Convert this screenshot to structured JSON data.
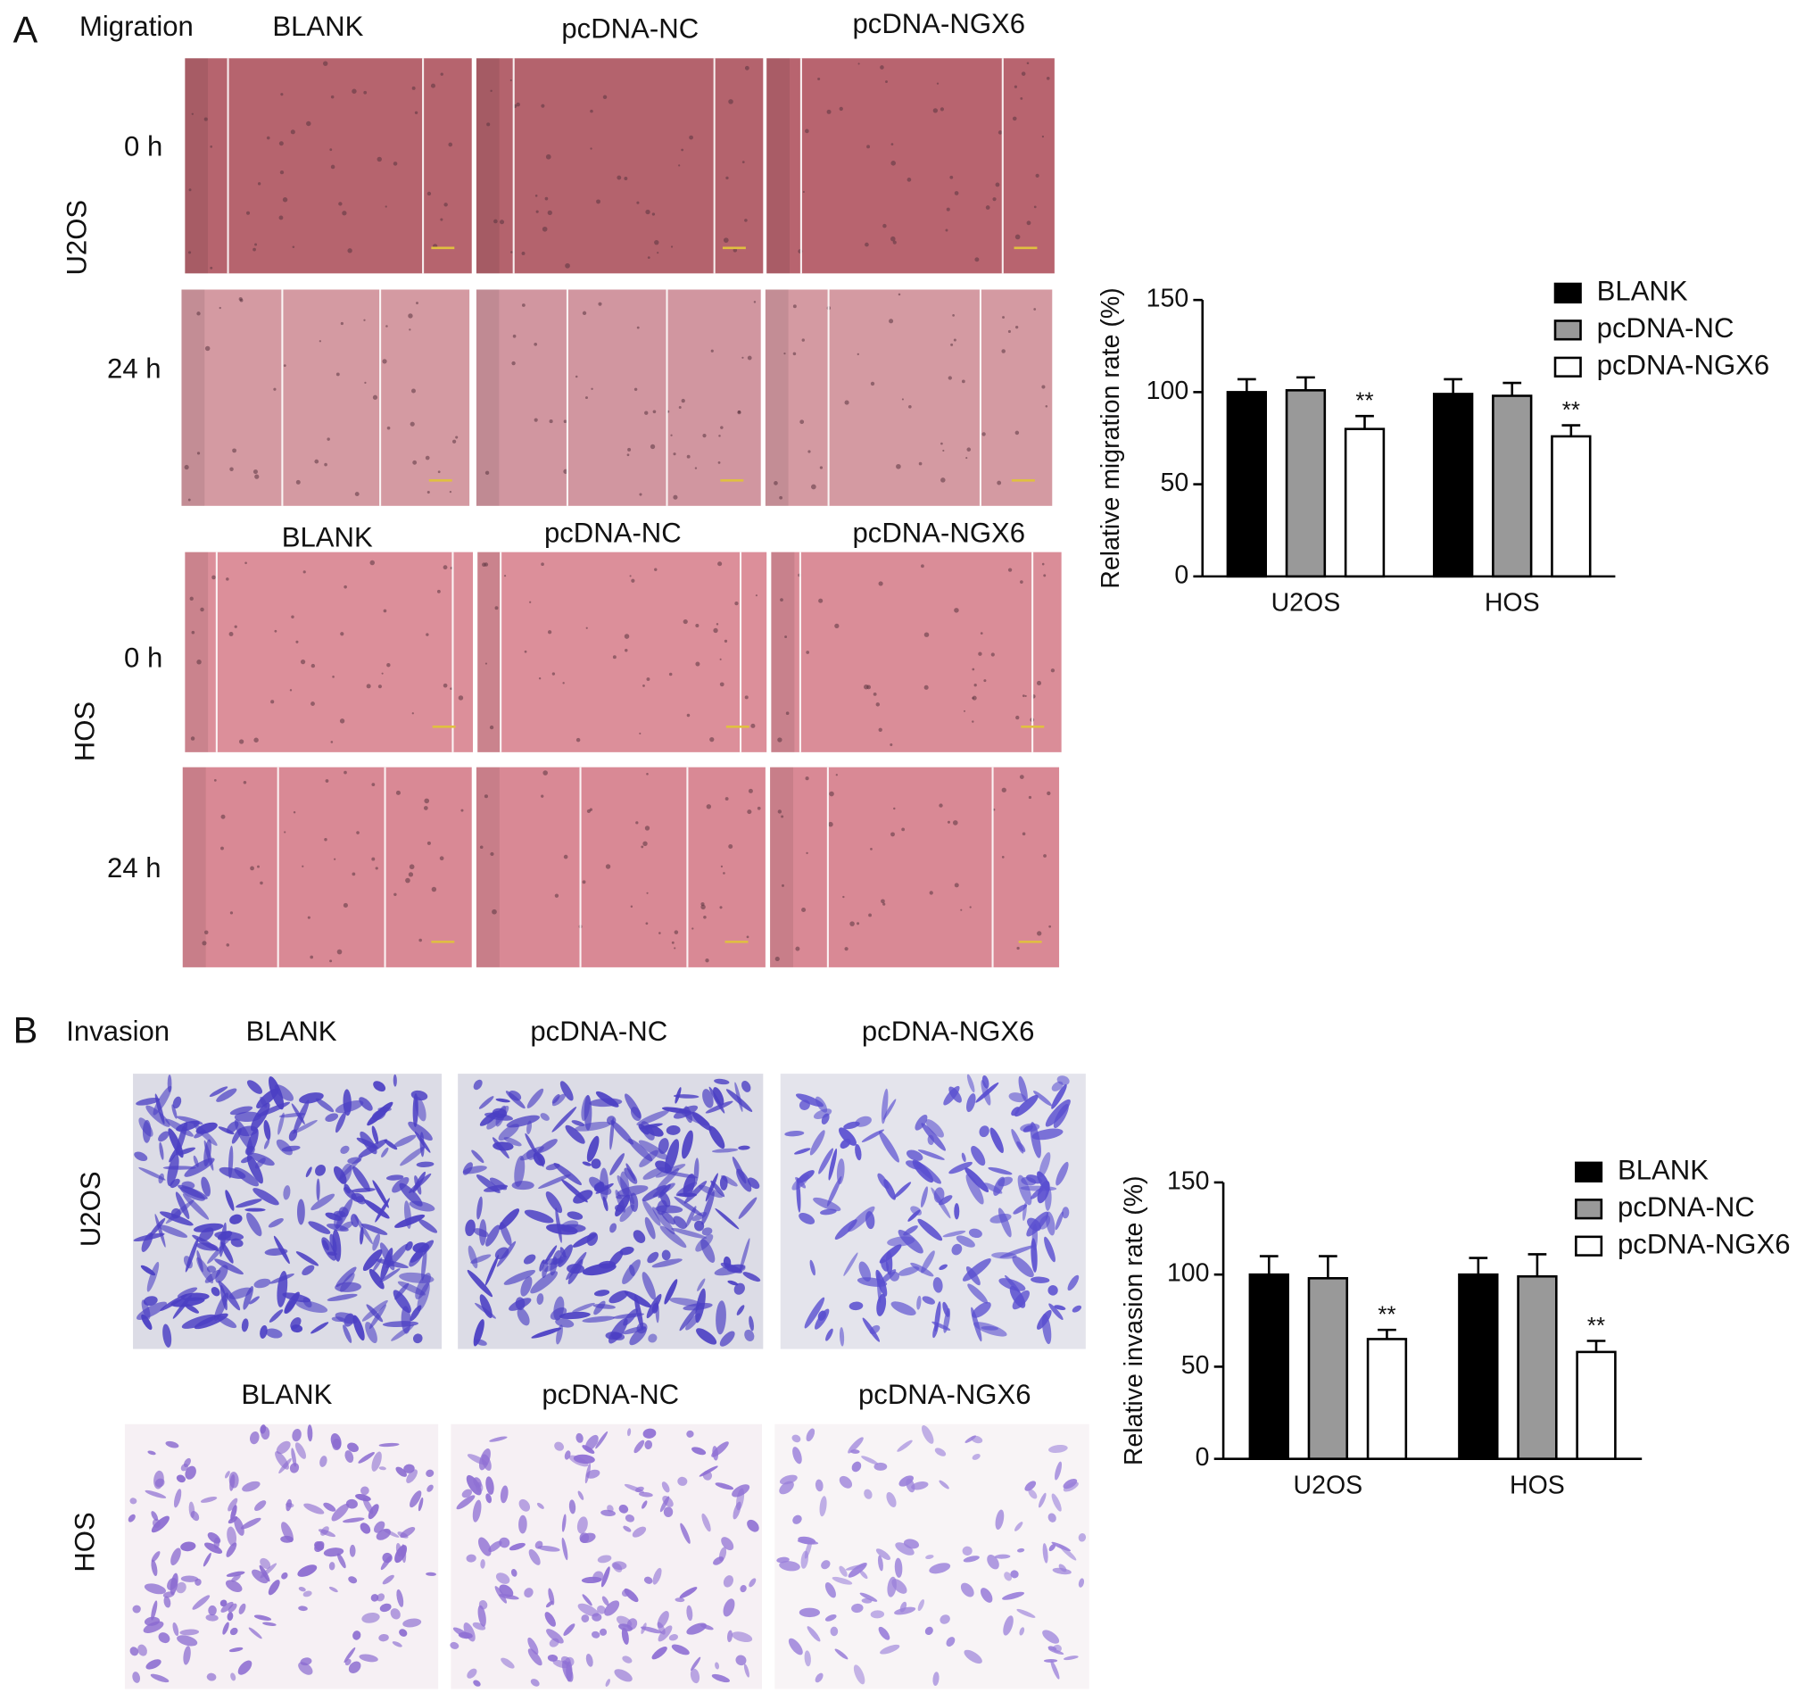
{
  "panel_a": {
    "label": "A",
    "title": "Migration",
    "blocks": [
      {
        "cell_line": "U2OS",
        "columns": [
          "BLANK",
          "pcDNA-NC",
          "pcDNA-NGX6"
        ],
        "rows": [
          "0 h",
          "24 h"
        ]
      },
      {
        "cell_line": "HOS",
        "columns": [
          "BLANK",
          "pcDNA-NC",
          "pcDNA-NGX6"
        ],
        "rows": [
          "0 h",
          "24 h"
        ]
      }
    ]
  },
  "panel_b": {
    "label": "B",
    "title": "Invasion",
    "blocks": [
      {
        "cell_line": "U2OS",
        "columns": [
          "BLANK",
          "pcDNA-NC",
          "pcDNA-NGX6"
        ]
      },
      {
        "cell_line": "HOS",
        "columns": [
          "BLANK",
          "pcDNA-NC",
          "pcDNA-NGX6"
        ]
      }
    ]
  },
  "chart_data": [
    {
      "type": "bar",
      "y_label": "Relative migration rate (%)",
      "categories": [
        "U2OS",
        "HOS"
      ],
      "ylim": [
        0,
        150
      ],
      "yticks": [
        0,
        50,
        100,
        150
      ],
      "legend": "top-right",
      "series": [
        {
          "name": "BLANK",
          "color": "#000000",
          "values": [
            100,
            99
          ],
          "errors": [
            7,
            8
          ]
        },
        {
          "name": "pcDNA-NC",
          "color": "#999999",
          "values": [
            101,
            98
          ],
          "errors": [
            7,
            7
          ]
        },
        {
          "name": "pcDNA-NGX6",
          "color": "#ffffff",
          "values": [
            80,
            76
          ],
          "errors": [
            7,
            6
          ],
          "annotations": [
            "**",
            "**"
          ]
        }
      ]
    },
    {
      "type": "bar",
      "y_label": "Relative invasion rate (%)",
      "categories": [
        "U2OS",
        "HOS"
      ],
      "ylim": [
        0,
        150
      ],
      "yticks": [
        0,
        50,
        100,
        150
      ],
      "legend": "top-right",
      "series": [
        {
          "name": "BLANK",
          "color": "#000000",
          "values": [
            100,
            100
          ],
          "errors": [
            10,
            9
          ]
        },
        {
          "name": "pcDNA-NC",
          "color": "#999999",
          "values": [
            98,
            99
          ],
          "errors": [
            12,
            12
          ]
        },
        {
          "name": "pcDNA-NGX6",
          "color": "#ffffff",
          "values": [
            65,
            58
          ],
          "errors": [
            5,
            6
          ],
          "annotations": [
            "**",
            "**"
          ]
        }
      ]
    }
  ]
}
